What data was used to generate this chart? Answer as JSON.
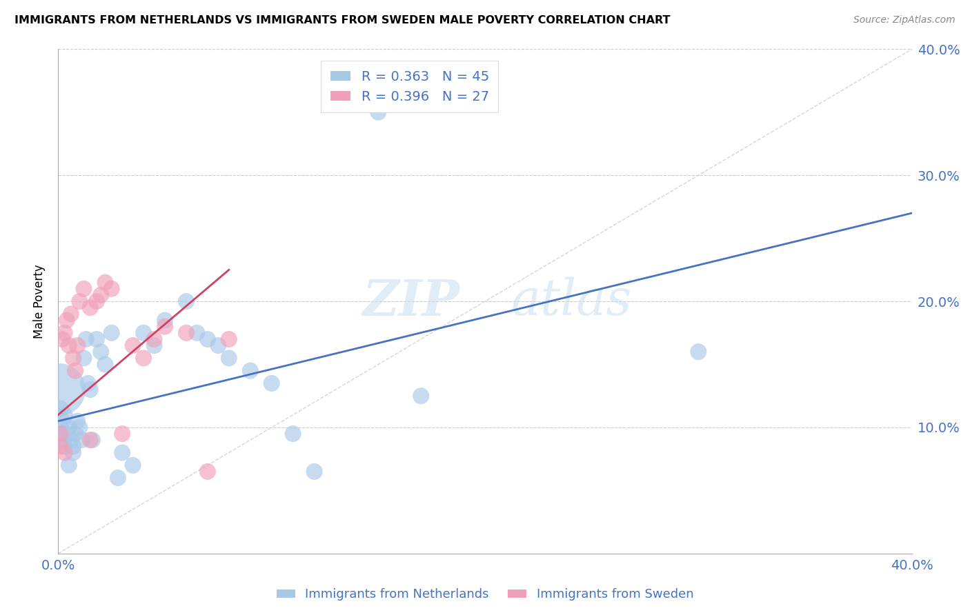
{
  "title": "IMMIGRANTS FROM NETHERLANDS VS IMMIGRANTS FROM SWEDEN MALE POVERTY CORRELATION CHART",
  "source": "Source: ZipAtlas.com",
  "ylabel": "Male Poverty",
  "xlim": [
    0.0,
    0.4
  ],
  "ylim": [
    0.0,
    0.4
  ],
  "legend1_R": "0.363",
  "legend1_N": "45",
  "legend2_R": "0.396",
  "legend2_N": "27",
  "color_netherlands": "#a8c8e8",
  "color_sweden": "#f0a0b8",
  "color_line_netherlands": "#4472c4",
  "color_line_sweden": "#d04060",
  "color_diagonal": "#cccccc",
  "color_axis_text": "#4472c4",
  "watermark_zip": "ZIP",
  "watermark_atlas": "atlas",
  "nl_line_x0": 0.0,
  "nl_line_y0": 0.105,
  "nl_line_x1": 0.4,
  "nl_line_y1": 0.27,
  "sw_line_x0": 0.0,
  "sw_line_y0": 0.11,
  "sw_line_x1": 0.08,
  "sw_line_y1": 0.225,
  "nl_x": [
    0.0005,
    0.001,
    0.001,
    0.001,
    0.002,
    0.002,
    0.003,
    0.003,
    0.004,
    0.005,
    0.005,
    0.006,
    0.007,
    0.007,
    0.008,
    0.009,
    0.01,
    0.011,
    0.012,
    0.013,
    0.014,
    0.015,
    0.016,
    0.018,
    0.02,
    0.022,
    0.025,
    0.028,
    0.03,
    0.035,
    0.04,
    0.045,
    0.05,
    0.06,
    0.065,
    0.07,
    0.075,
    0.08,
    0.09,
    0.1,
    0.11,
    0.12,
    0.15,
    0.17,
    0.3
  ],
  "nl_y": [
    0.13,
    0.115,
    0.095,
    0.1,
    0.09,
    0.105,
    0.085,
    0.11,
    0.095,
    0.07,
    0.1,
    0.09,
    0.085,
    0.08,
    0.095,
    0.105,
    0.1,
    0.09,
    0.155,
    0.17,
    0.135,
    0.13,
    0.09,
    0.17,
    0.16,
    0.15,
    0.175,
    0.06,
    0.08,
    0.07,
    0.175,
    0.165,
    0.185,
    0.2,
    0.175,
    0.17,
    0.165,
    0.155,
    0.145,
    0.135,
    0.095,
    0.065,
    0.35,
    0.125,
    0.16
  ],
  "nl_sizes": [
    3000,
    300,
    300,
    300,
    300,
    300,
    300,
    300,
    300,
    300,
    300,
    300,
    300,
    300,
    300,
    300,
    300,
    300,
    300,
    300,
    300,
    300,
    300,
    300,
    300,
    300,
    300,
    300,
    300,
    300,
    300,
    300,
    300,
    300,
    300,
    300,
    300,
    300,
    300,
    300,
    300,
    300,
    300,
    300,
    300
  ],
  "sw_x": [
    0.001,
    0.001,
    0.002,
    0.003,
    0.003,
    0.004,
    0.005,
    0.006,
    0.007,
    0.008,
    0.009,
    0.01,
    0.012,
    0.015,
    0.018,
    0.02,
    0.022,
    0.025,
    0.03,
    0.035,
    0.04,
    0.045,
    0.05,
    0.06,
    0.07,
    0.08,
    0.015
  ],
  "sw_y": [
    0.085,
    0.095,
    0.17,
    0.08,
    0.175,
    0.185,
    0.165,
    0.19,
    0.155,
    0.145,
    0.165,
    0.2,
    0.21,
    0.195,
    0.2,
    0.205,
    0.215,
    0.21,
    0.095,
    0.165,
    0.155,
    0.17,
    0.18,
    0.175,
    0.065,
    0.17,
    0.09
  ],
  "sw_sizes": [
    300,
    300,
    300,
    300,
    300,
    300,
    300,
    300,
    300,
    300,
    300,
    300,
    300,
    300,
    300,
    300,
    300,
    300,
    300,
    300,
    300,
    300,
    300,
    300,
    300,
    300,
    300
  ]
}
